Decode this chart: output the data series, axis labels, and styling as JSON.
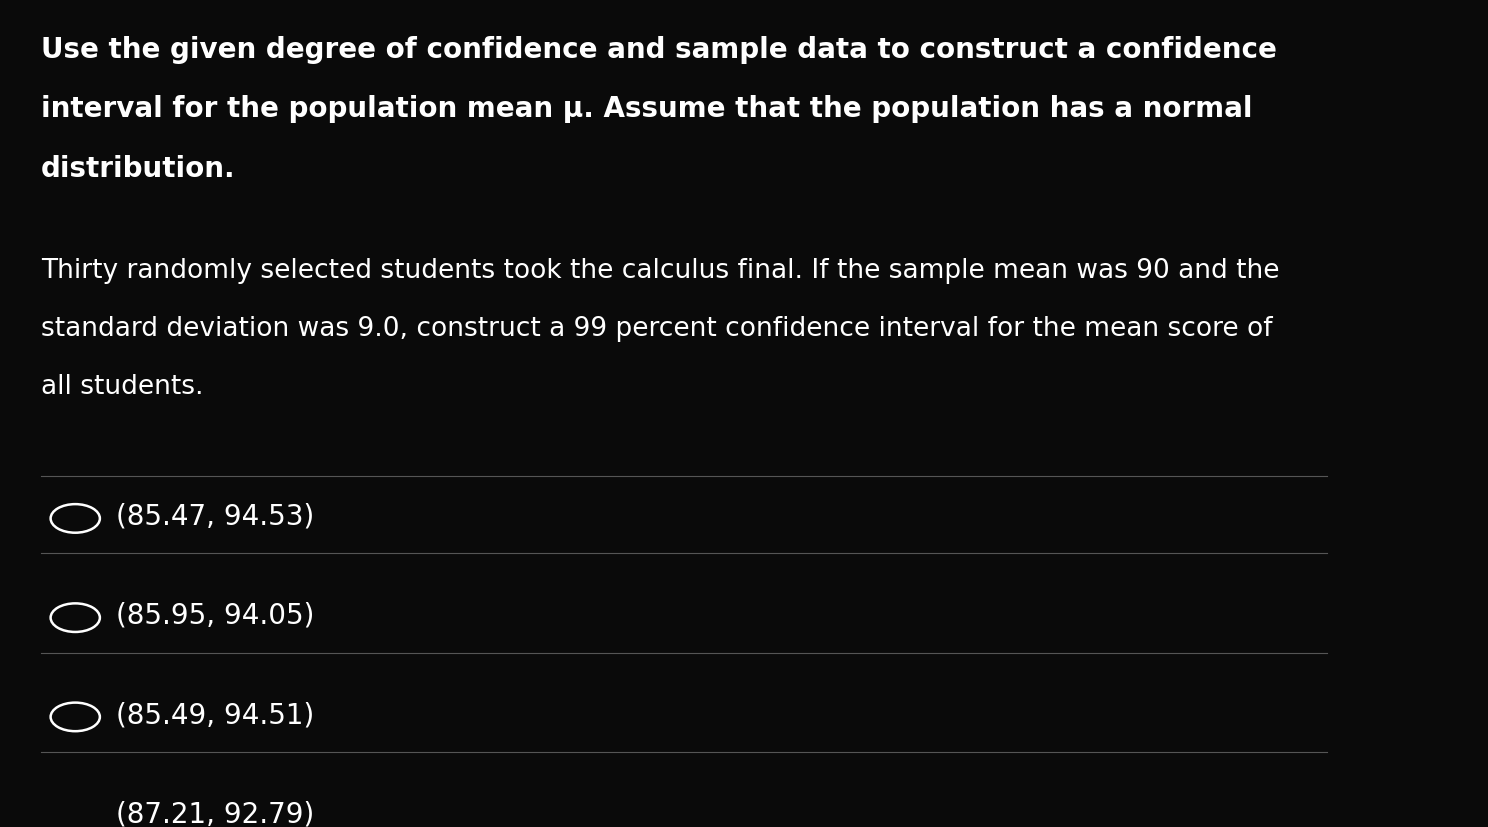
{
  "background_color": "#0a0a0a",
  "text_color": "#ffffff",
  "title_bold_line1": "Use the given degree of confidence and sample data to construct a confidence",
  "title_bold_line2": "interval for the population mean μ. Assume that the population has a normal",
  "title_bold_line3": "distribution.",
  "body_text_line1": "Thirty randomly selected students took the calculus final. If the sample mean was 90 and the",
  "body_text_line2": "standard deviation was 9.0, construct a 99 percent confidence interval for the mean score of",
  "body_text_line3": "all students.",
  "options": [
    "(85.47, 94.53)",
    "(85.95, 94.05)",
    "(85.49, 94.51)",
    "(87.21, 92.79)"
  ],
  "divider_color": "#555555",
  "circle_color": "#ffffff",
  "title_fontsize": 20,
  "body_fontsize": 19,
  "option_fontsize": 20
}
